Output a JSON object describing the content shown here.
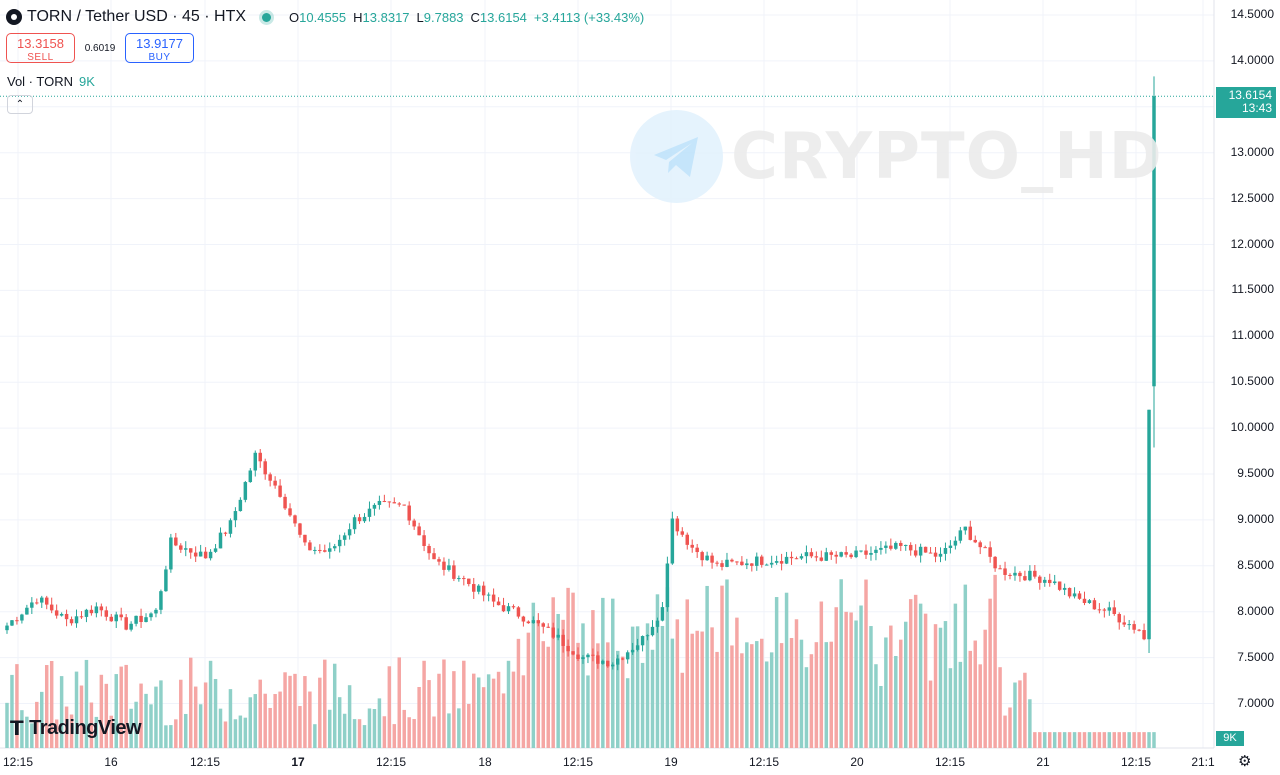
{
  "header": {
    "title": "TORN / Tether USD · 45 · HTX",
    "ohlc": {
      "o_label": "O",
      "o": "10.4555",
      "h_label": "H",
      "h": "13.8317",
      "l_label": "L",
      "l": "9.7883",
      "c_label": "C",
      "c": "13.6154",
      "change": "+3.4113 (+33.43%)"
    }
  },
  "trade": {
    "sell_price": "13.3158",
    "sell_label": "SELL",
    "spread": "0.6019",
    "buy_price": "13.9177",
    "buy_label": "BUY"
  },
  "volume_legend": {
    "label": "Vol · TORN",
    "value": "9K"
  },
  "collapse_icon": "chevron-up-icon",
  "watermark": "CRYPTO_HD",
  "branding": "TradingView",
  "last_price": {
    "price": "13.6154",
    "countdown": "13:43"
  },
  "volume_last": "9K",
  "colors": {
    "up": "#26a69a",
    "down": "#ef5350",
    "up_vol": "#8fd0c8",
    "down_vol": "#f5a6a4"
  },
  "chart_data": {
    "type": "candlestick",
    "y_axis": {
      "ticks": [
        "14.5000",
        "14.0000",
        "13.5000",
        "13.0000",
        "12.5000",
        "12.0000",
        "11.5000",
        "11.0000",
        "10.5000",
        "10.0000",
        "9.5000",
        "9.0000",
        "8.5000",
        "8.0000",
        "7.5000",
        "7.0000"
      ],
      "range": [
        6.5,
        14.6
      ]
    },
    "x_axis": {
      "ticks": [
        {
          "label": "12:15",
          "major": false
        },
        {
          "label": "16",
          "major": false
        },
        {
          "label": "12:15",
          "major": false
        },
        {
          "label": "17",
          "major": true
        },
        {
          "label": "12:15",
          "major": false
        },
        {
          "label": "18",
          "major": false
        },
        {
          "label": "12:15",
          "major": false
        },
        {
          "label": "19",
          "major": false
        },
        {
          "label": "12:15",
          "major": false
        },
        {
          "label": "20",
          "major": false
        },
        {
          "label": "12:15",
          "major": false
        },
        {
          "label": "21",
          "major": false
        },
        {
          "label": "12:15",
          "major": false
        },
        {
          "label": "21:1",
          "major": false
        }
      ]
    },
    "grid": true,
    "last_price_line": 13.6154,
    "anchors": [
      {
        "i": 0,
        "c": 7.85
      },
      {
        "i": 6,
        "c": 8.15
      },
      {
        "i": 12,
        "c": 7.9
      },
      {
        "i": 18,
        "c": 8.05
      },
      {
        "i": 24,
        "c": 7.85
      },
      {
        "i": 30,
        "c": 8.0
      },
      {
        "i": 33,
        "c": 8.75
      },
      {
        "i": 40,
        "c": 8.6
      },
      {
        "i": 45,
        "c": 8.95
      },
      {
        "i": 50,
        "c": 9.7
      },
      {
        "i": 55,
        "c": 9.3
      },
      {
        "i": 60,
        "c": 8.7
      },
      {
        "i": 65,
        "c": 8.65
      },
      {
        "i": 70,
        "c": 9.0
      },
      {
        "i": 75,
        "c": 9.15
      },
      {
        "i": 80,
        "c": 9.15
      },
      {
        "i": 86,
        "c": 8.55
      },
      {
        "i": 92,
        "c": 8.35
      },
      {
        "i": 98,
        "c": 8.1
      },
      {
        "i": 104,
        "c": 7.95
      },
      {
        "i": 110,
        "c": 7.75
      },
      {
        "i": 116,
        "c": 7.5
      },
      {
        "i": 122,
        "c": 7.45
      },
      {
        "i": 128,
        "c": 7.7
      },
      {
        "i": 132,
        "c": 8.05
      },
      {
        "i": 134,
        "c": 9.0
      },
      {
        "i": 138,
        "c": 8.7
      },
      {
        "i": 143,
        "c": 8.5
      },
      {
        "i": 150,
        "c": 8.55
      },
      {
        "i": 160,
        "c": 8.6
      },
      {
        "i": 170,
        "c": 8.6
      },
      {
        "i": 180,
        "c": 8.7
      },
      {
        "i": 188,
        "c": 8.6
      },
      {
        "i": 193,
        "c": 8.9
      },
      {
        "i": 200,
        "c": 8.45
      },
      {
        "i": 210,
        "c": 8.35
      },
      {
        "i": 215,
        "c": 8.15
      },
      {
        "i": 222,
        "c": 8.0
      },
      {
        "i": 228,
        "c": 7.8
      },
      {
        "i": 229,
        "c": 7.7
      },
      {
        "i": 230,
        "c": 10.2
      },
      {
        "i": 231,
        "c": 13.6154
      }
    ],
    "candle_count": 232,
    "volume_max_k": 150
  }
}
